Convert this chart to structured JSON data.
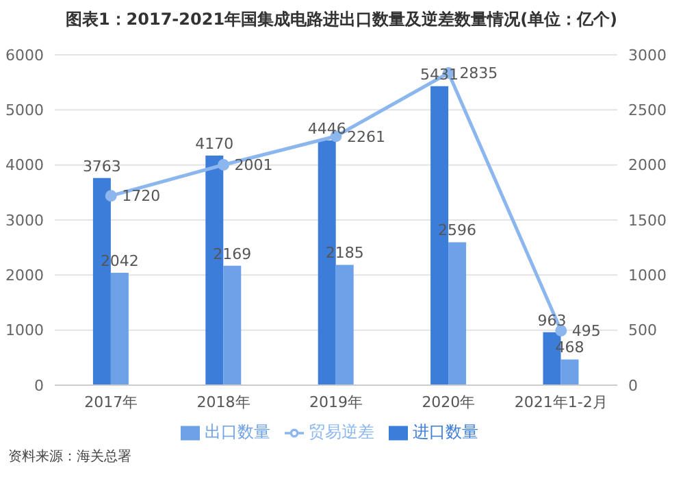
{
  "chart_data": {
    "type": "bar",
    "title": "图表1：2017-2021年国集成电路进出口数量及逆差数量情况(单位：亿个)",
    "categories": [
      "2017年",
      "2018年",
      "2019年",
      "2020年",
      "2021年1-2月"
    ],
    "series": [
      {
        "name": "进口数量",
        "color": "#3c7dd9",
        "values": [
          3763,
          4170,
          4446,
          5431,
          963
        ]
      },
      {
        "name": "出口数量",
        "color": "#6ea2e8",
        "values": [
          2042,
          2169,
          2185,
          2596,
          468
        ]
      },
      {
        "name": "贸易逆差",
        "type": "line",
        "axis": "y2",
        "color": "#8cb6ee",
        "values": [
          1720,
          2001,
          2261,
          2835,
          495
        ]
      }
    ],
    "ylim": [
      0,
      6000
    ],
    "yticks": [
      0,
      1000,
      2000,
      3000,
      4000,
      5000,
      6000
    ],
    "y2lim": [
      0,
      3000
    ],
    "y2ticks": [
      0,
      500,
      1000,
      1500,
      2000,
      2500,
      3000
    ],
    "grid": "y",
    "legend": "bottom",
    "marker": "circle",
    "data_labels": true,
    "annotations": [
      "资料来源：海关总署"
    ]
  }
}
